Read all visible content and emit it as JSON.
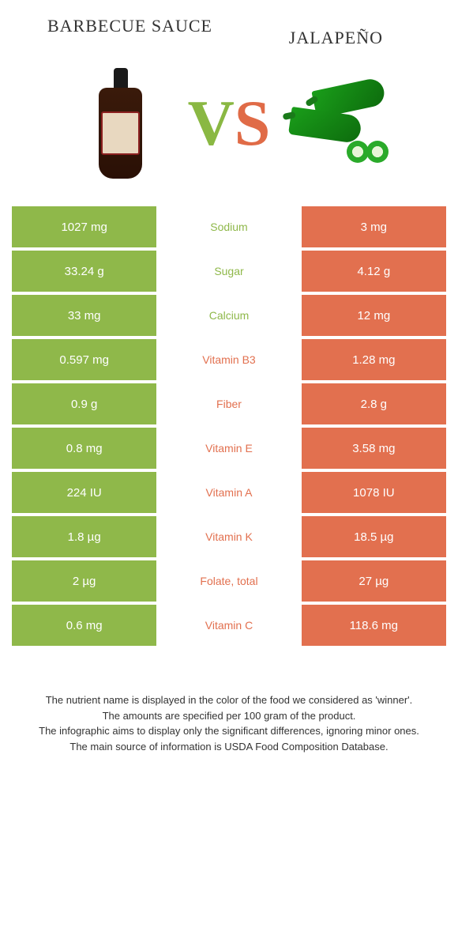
{
  "colors": {
    "left": "#8fb84a",
    "right": "#e2704f",
    "left_text": "#8fb84a",
    "right_text": "#e2704f"
  },
  "titles": {
    "left": "Barbecue sauce",
    "right": "Jalapeño"
  },
  "vs": {
    "v": "V",
    "s": "S"
  },
  "rows": [
    {
      "left": "1027 mg",
      "label": "Sodium",
      "right": "3 mg",
      "winner": "left"
    },
    {
      "left": "33.24 g",
      "label": "Sugar",
      "right": "4.12 g",
      "winner": "left"
    },
    {
      "left": "33 mg",
      "label": "Calcium",
      "right": "12 mg",
      "winner": "left"
    },
    {
      "left": "0.597 mg",
      "label": "Vitamin B3",
      "right": "1.28 mg",
      "winner": "right"
    },
    {
      "left": "0.9 g",
      "label": "Fiber",
      "right": "2.8 g",
      "winner": "right"
    },
    {
      "left": "0.8 mg",
      "label": "Vitamin E",
      "right": "3.58 mg",
      "winner": "right"
    },
    {
      "left": "224 IU",
      "label": "Vitamin A",
      "right": "1078 IU",
      "winner": "right"
    },
    {
      "left": "1.8 µg",
      "label": "Vitamin K",
      "right": "18.5 µg",
      "winner": "right"
    },
    {
      "left": "2 µg",
      "label": "Folate, total",
      "right": "27 µg",
      "winner": "right"
    },
    {
      "left": "0.6 mg",
      "label": "Vitamin C",
      "right": "118.6 mg",
      "winner": "right"
    }
  ],
  "footnotes": [
    "The nutrient name is displayed in the color of the food we considered as 'winner'.",
    "The amounts are specified per 100 gram of the product.",
    "The infographic aims to display only the significant differences, ignoring minor ones.",
    "The main source of information is USDA Food Composition Database."
  ]
}
